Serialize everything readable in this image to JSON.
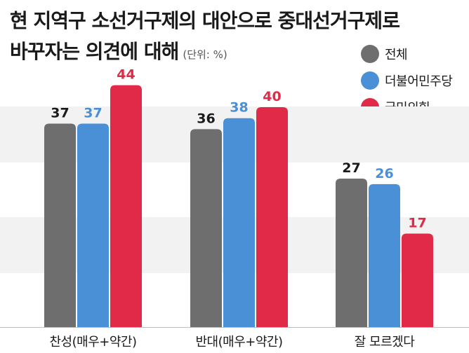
{
  "title": {
    "line1": "현 지역구 소선거구제의 대안으로 중대선거구제로",
    "line2": "바꾸자는 의견에 대해",
    "unit": "(단위: %)"
  },
  "colors": {
    "total": "#6e6e6e",
    "democratic": "#4a90d6",
    "ppp": "#e12a47",
    "band": "#f2f2f2"
  },
  "chart_data": {
    "type": "bar",
    "categories": [
      "찬성(매우+약간)",
      "반대(매우+약간)",
      "잘 모르겠다"
    ],
    "series": [
      {
        "name": "전체",
        "values": [
          37,
          36,
          27
        ]
      },
      {
        "name": "더불어민주당",
        "values": [
          37,
          38,
          26
        ]
      },
      {
        "name": "국민의힘",
        "values": [
          44,
          40,
          17
        ]
      }
    ],
    "ylim": [
      0,
      50
    ],
    "legend_position": "top-right"
  }
}
